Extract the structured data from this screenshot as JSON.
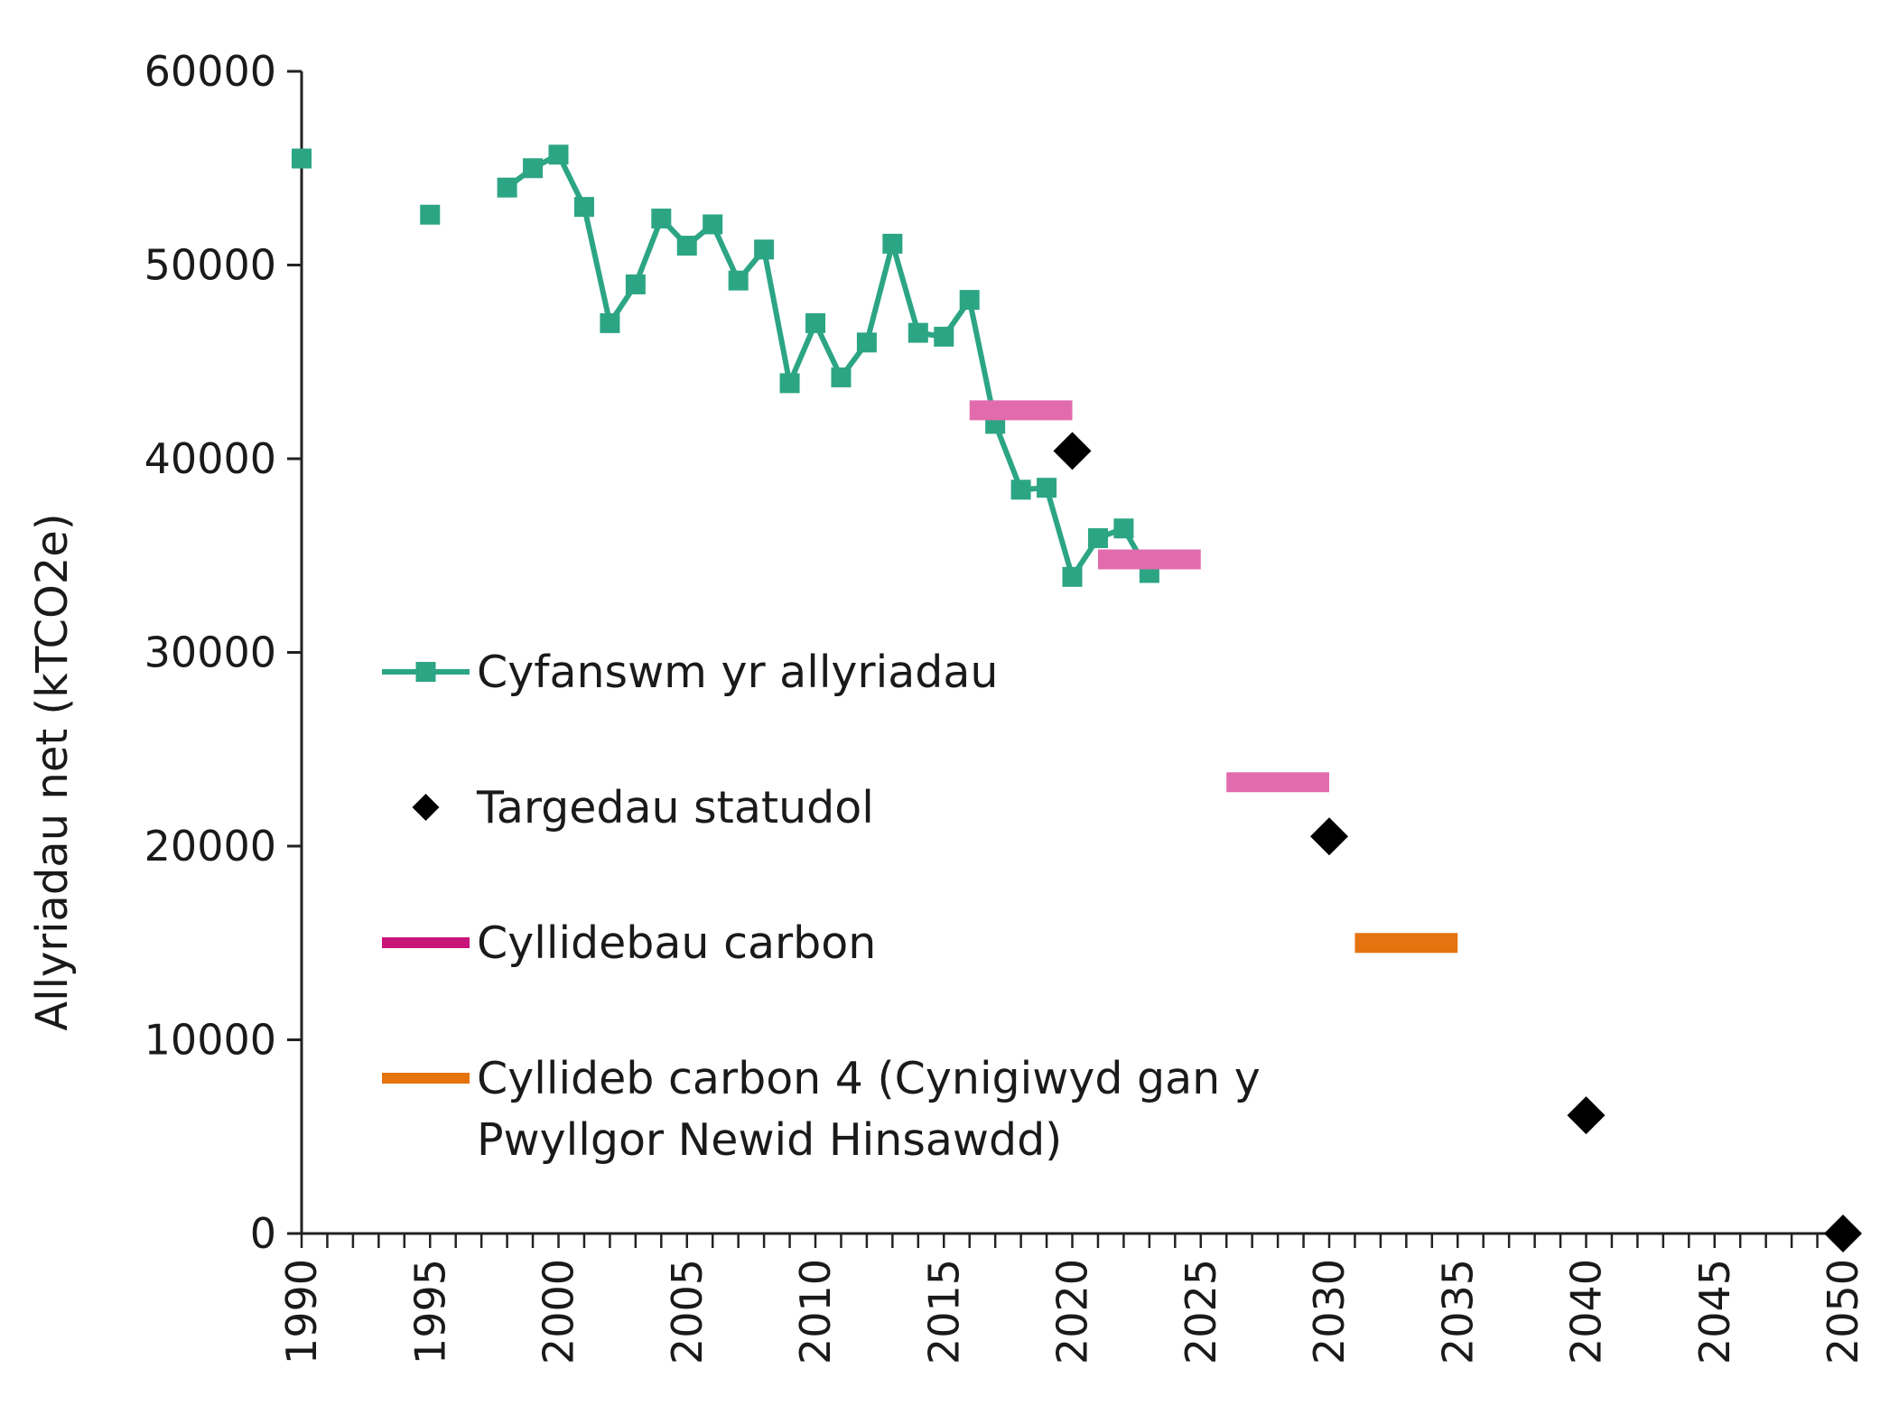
{
  "chart_data": {
    "type": "line",
    "ylabel": "Allyriadau net (kTCO2e)",
    "xlabel": "",
    "xlim": [
      1990,
      2050
    ],
    "ylim": [
      0,
      60000
    ],
    "x_ticks": [
      "1990",
      "1995",
      "2000",
      "2005",
      "2010",
      "2015",
      "2020",
      "2025",
      "2030",
      "2035",
      "2040",
      "2045",
      "2050"
    ],
    "y_ticks": [
      "0",
      "10000",
      "20000",
      "30000",
      "40000",
      "50000",
      "60000"
    ],
    "grid": false,
    "legend_position": "left-center",
    "series": [
      {
        "name": "Cyfanswm yr allyriadau",
        "kind": "line-markers",
        "color": "#2ca584",
        "points": [
          {
            "x": 1990,
            "y": 55500
          },
          {
            "x": 1995,
            "y": 52600
          },
          {
            "x": 1998,
            "y": 54000
          },
          {
            "x": 1999,
            "y": 55000
          },
          {
            "x": 2000,
            "y": 55700
          },
          {
            "x": 2001,
            "y": 53000
          },
          {
            "x": 2002,
            "y": 47000
          },
          {
            "x": 2003,
            "y": 49000
          },
          {
            "x": 2004,
            "y": 52400
          },
          {
            "x": 2005,
            "y": 51000
          },
          {
            "x": 2006,
            "y": 52100
          },
          {
            "x": 2007,
            "y": 49200
          },
          {
            "x": 2008,
            "y": 50800
          },
          {
            "x": 2009,
            "y": 43900
          },
          {
            "x": 2010,
            "y": 47000
          },
          {
            "x": 2011,
            "y": 44200
          },
          {
            "x": 2012,
            "y": 46000
          },
          {
            "x": 2013,
            "y": 51100
          },
          {
            "x": 2014,
            "y": 46500
          },
          {
            "x": 2015,
            "y": 46300
          },
          {
            "x": 2016,
            "y": 48200
          },
          {
            "x": 2017,
            "y": 41800
          },
          {
            "x": 2018,
            "y": 38400
          },
          {
            "x": 2019,
            "y": 38500
          },
          {
            "x": 2020,
            "y": 33900
          },
          {
            "x": 2021,
            "y": 35900
          },
          {
            "x": 2022,
            "y": 36400
          },
          {
            "x": 2023,
            "y": 34100
          }
        ]
      },
      {
        "name": "Targedau statudol",
        "kind": "diamonds",
        "color": "#000000",
        "points": [
          {
            "x": 2020,
            "y": 40400
          },
          {
            "x": 2030,
            "y": 20500
          },
          {
            "x": 2040,
            "y": 6100
          },
          {
            "x": 2050,
            "y": 0
          }
        ]
      },
      {
        "name": "Cyllidebau carbon",
        "kind": "segments",
        "color": "#c8157a",
        "draw_color": "#e16bad",
        "segments": [
          {
            "x0": 2016,
            "x1": 2020,
            "y": 42500
          },
          {
            "x0": 2021,
            "x1": 2025,
            "y": 34800
          },
          {
            "x0": 2026,
            "x1": 2030,
            "y": 23300
          }
        ]
      },
      {
        "name": "Cyllideb carbon 4 (Cynigiwyd gan y Pwyllgor Newid Hinsawdd)",
        "legend_lines": [
          "Cyllideb carbon 4 (Cynigiwyd gan y",
          "Pwyllgor Newid Hinsawdd)"
        ],
        "kind": "segments",
        "color": "#e5730f",
        "draw_color": "#e5730f",
        "segments": [
          {
            "x0": 2031,
            "x1": 2035,
            "y": 15000
          }
        ]
      }
    ]
  }
}
